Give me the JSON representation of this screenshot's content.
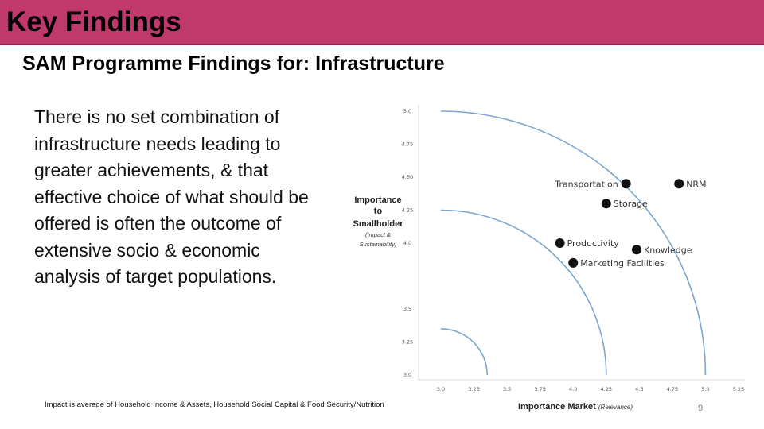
{
  "header": {
    "title": "Key Findings",
    "bg_color": "#c0396b"
  },
  "subtitle": "SAM Programme Findings for: Infrastructure",
  "body_text": "There is no set combination of infrastructure needs leading to greater achievements, & that effective choice of what should be offered is often the outcome of extensive socio & economic analysis of target populations.",
  "footnote": "Impact is average of Household Income & Assets, Household Social Capital & Food Security/Nutrition",
  "page_number": "9",
  "chart_data": {
    "type": "scatter",
    "ylabel": "Importance to Smallholder",
    "ylabel_sub": "(Impact & Sustainability)",
    "xlabel": "Importance Market",
    "xlabel_sub": "(Relevance)",
    "xlim": [
      3.0,
      5.25
    ],
    "ylim": [
      3.0,
      5.0
    ],
    "x_ticks": [
      "3.0",
      "3.25",
      "3.5",
      "3.75",
      "4.0",
      "4.25",
      "4.5",
      "4.75",
      "5.0",
      "5.25"
    ],
    "y_ticks": [
      "3.0",
      "3.25",
      "3.5",
      "4.0",
      "4.25",
      "4.50",
      "4.75",
      "5.0"
    ],
    "y_tick_values": [
      3.0,
      3.25,
      3.5,
      4.0,
      4.25,
      4.5,
      4.75,
      5.0
    ],
    "arc_radii": [
      0.35,
      1.25,
      2.0
    ],
    "arc_color": "#7ba6cf",
    "point_color": "#111111",
    "points": [
      {
        "label": "Transportation",
        "x": 4.4,
        "y": 4.45,
        "label_side": "left"
      },
      {
        "label": "NRM",
        "x": 4.8,
        "y": 4.45,
        "label_side": "right"
      },
      {
        "label": "Storage",
        "x": 4.25,
        "y": 4.3,
        "label_side": "right"
      },
      {
        "label": "Productivity",
        "x": 3.9,
        "y": 4.0,
        "label_side": "right"
      },
      {
        "label": "Knowledge",
        "x": 4.48,
        "y": 3.95,
        "label_side": "right"
      },
      {
        "label": "Marketing Facilities",
        "x": 4.0,
        "y": 3.85,
        "label_side": "right"
      }
    ]
  }
}
